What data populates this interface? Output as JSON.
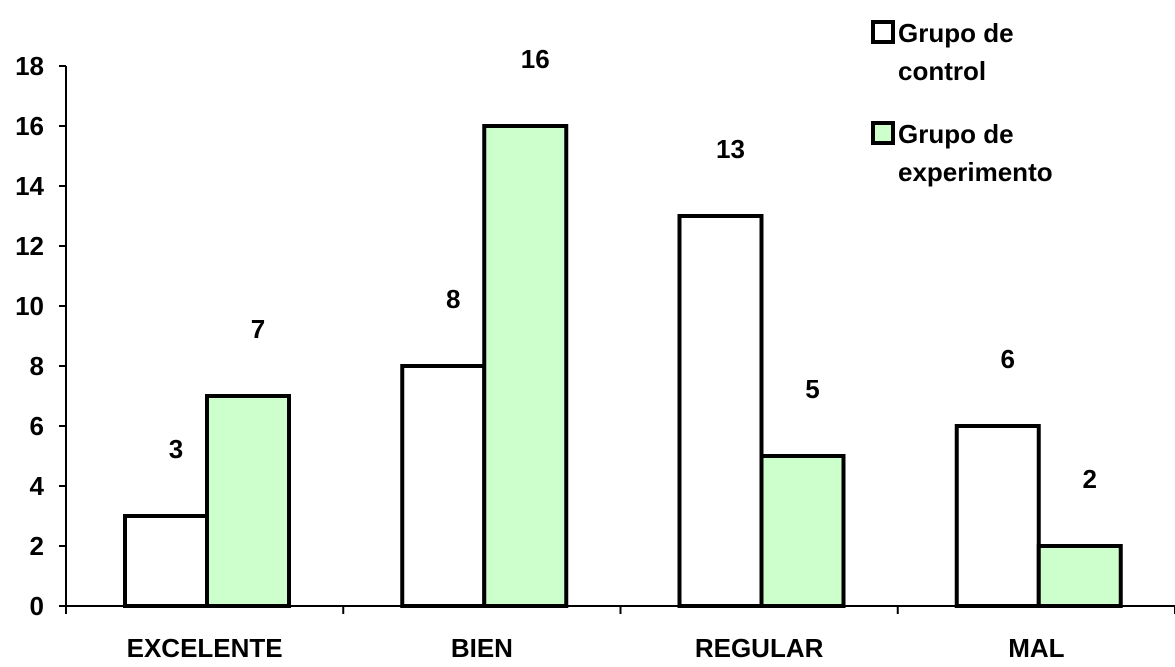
{
  "chart_data": {
    "type": "bar",
    "categories": [
      "EXCELENTE",
      "BIEN",
      "REGULAR",
      "MAL"
    ],
    "series": [
      {
        "name": "Grupo de control",
        "values": [
          3,
          8,
          13,
          6
        ],
        "color": "#ffffff"
      },
      {
        "name": "Grupo de experimento",
        "values": [
          7,
          16,
          5,
          2
        ],
        "color": "#ccffcc"
      }
    ],
    "ylim": [
      0,
      18
    ],
    "yticks": [
      0,
      2,
      4,
      6,
      8,
      10,
      12,
      14,
      16,
      18
    ],
    "grid": false,
    "legend_position": "top-right",
    "data_labels": true,
    "title": "",
    "xlabel": "",
    "ylabel": ""
  }
}
